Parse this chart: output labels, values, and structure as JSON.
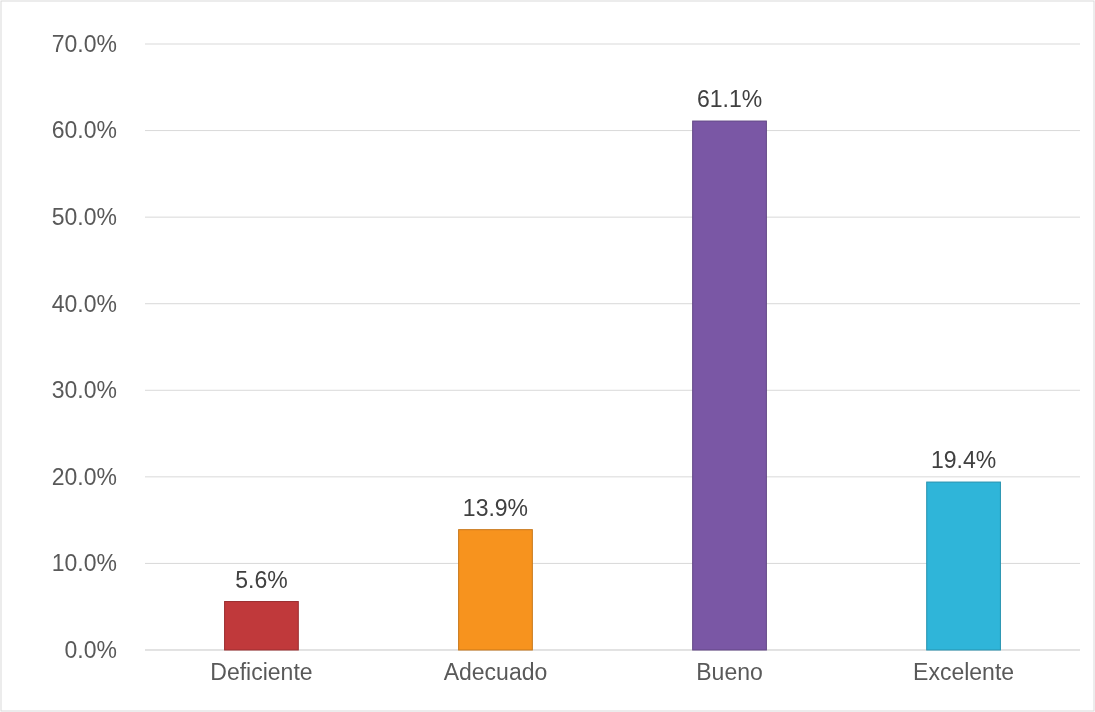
{
  "chart_data": {
    "type": "bar",
    "categories": [
      "Deficiente",
      "Adecuado",
      "Bueno",
      "Excelente"
    ],
    "values": [
      5.6,
      13.9,
      61.1,
      19.4
    ],
    "colors": [
      "#c0393b",
      "#f7931e",
      "#7a57a5",
      "#2fb5d9"
    ],
    "value_labels": [
      "5.6%",
      "13.9%",
      "61.1%",
      "19.4%"
    ],
    "ylim": [
      0,
      70
    ],
    "yticks": [
      {
        "value": 0,
        "label": "0.0%"
      },
      {
        "value": 10,
        "label": "10.0%"
      },
      {
        "value": 20,
        "label": "20.0%"
      },
      {
        "value": 30,
        "label": "30.0%"
      },
      {
        "value": 40,
        "label": "40.0%"
      },
      {
        "value": 50,
        "label": "50.0%"
      },
      {
        "value": 60,
        "label": "60.0%"
      },
      {
        "value": 70,
        "label": "70.0%"
      }
    ],
    "grid": "y"
  }
}
